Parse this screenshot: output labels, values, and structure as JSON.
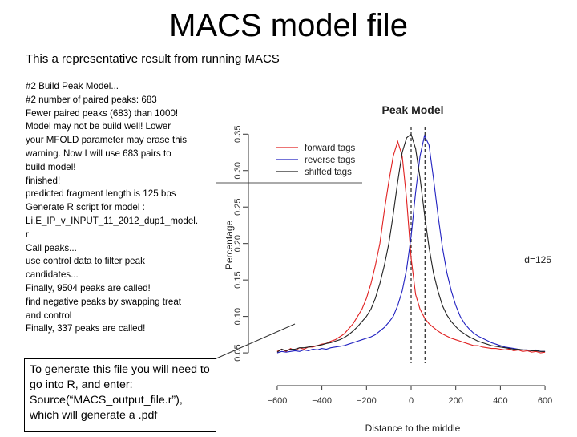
{
  "slide": {
    "title": "MACS model file",
    "subtitle": "This a representative result from running MACS",
    "log_lines": [
      "#2 Build Peak Model...",
      "#2 number of paired peaks: 683",
      "Fewer paired peaks (683) than 1000!",
      "Model may not be build well! Lower",
      "your MFOLD parameter may erase this",
      "warning. Now I will use 683 pairs to",
      "build model!",
      "finished!",
      "predicted fragment length is 125 bps",
      "Generate R script for model :",
      "Li.E_IP_v_INPUT_11_2012_dup1_model.",
      "r",
      "Call peaks...",
      "use control data to filter peak",
      "candidates...",
      "Finally, 9504 peaks are called!",
      "find negative peaks by swapping treat",
      "and control",
      "Finally, 337 peaks are called!"
    ],
    "note": "To generate this file you will need to go into R, and enter: Source(“MACS_output_file.r”), which will generate a .pdf"
  },
  "chart_data": {
    "type": "line",
    "title": "Peak Model",
    "xlabel": "Distance to the middle",
    "ylabel": "Percentage",
    "xlim": [
      -650,
      650
    ],
    "ylim": [
      0.038,
      0.358
    ],
    "xticks": [
      -600,
      -400,
      -200,
      0,
      200,
      400,
      600
    ],
    "yticks": [
      0.05,
      0.1,
      0.15,
      0.2,
      0.25,
      0.3,
      0.35
    ],
    "annotation": "d=125",
    "legend_position": "top-left",
    "vlines": [
      0,
      62
    ],
    "grid": false,
    "series": [
      {
        "name": "forward tags",
        "color": "#e02020",
        "x": [
          -600,
          -580,
          -560,
          -540,
          -520,
          -500,
          -480,
          -460,
          -440,
          -420,
          -400,
          -380,
          -360,
          -340,
          -320,
          -300,
          -280,
          -260,
          -240,
          -220,
          -200,
          -180,
          -160,
          -140,
          -120,
          -100,
          -80,
          -60,
          -40,
          -20,
          0,
          20,
          40,
          60,
          80,
          100,
          120,
          140,
          160,
          180,
          200,
          220,
          240,
          260,
          280,
          300,
          320,
          340,
          360,
          380,
          400,
          420,
          440,
          460,
          480,
          500,
          520,
          540,
          560,
          580,
          600
        ],
        "y": [
          0.052,
          0.055,
          0.052,
          0.056,
          0.053,
          0.057,
          0.055,
          0.058,
          0.058,
          0.06,
          0.062,
          0.063,
          0.066,
          0.068,
          0.072,
          0.076,
          0.083,
          0.09,
          0.1,
          0.11,
          0.125,
          0.145,
          0.17,
          0.2,
          0.245,
          0.285,
          0.32,
          0.34,
          0.32,
          0.26,
          0.18,
          0.13,
          0.11,
          0.098,
          0.09,
          0.085,
          0.08,
          0.076,
          0.073,
          0.07,
          0.068,
          0.066,
          0.064,
          0.062,
          0.06,
          0.06,
          0.058,
          0.057,
          0.056,
          0.056,
          0.055,
          0.054,
          0.055,
          0.053,
          0.054,
          0.052,
          0.053,
          0.051,
          0.052,
          0.05,
          0.051
        ]
      },
      {
        "name": "reverse tags",
        "color": "#2020c0",
        "x": [
          -600,
          -580,
          -560,
          -540,
          -520,
          -500,
          -480,
          -460,
          -440,
          -420,
          -400,
          -380,
          -360,
          -340,
          -320,
          -300,
          -280,
          -260,
          -240,
          -220,
          -200,
          -180,
          -160,
          -140,
          -120,
          -100,
          -80,
          -60,
          -40,
          -20,
          0,
          20,
          40,
          60,
          80,
          100,
          120,
          140,
          160,
          180,
          200,
          220,
          240,
          260,
          280,
          300,
          320,
          340,
          360,
          380,
          400,
          420,
          440,
          460,
          480,
          500,
          520,
          540,
          560,
          580,
          600
        ],
        "y": [
          0.05,
          0.052,
          0.051,
          0.052,
          0.053,
          0.052,
          0.054,
          0.053,
          0.055,
          0.054,
          0.056,
          0.055,
          0.057,
          0.058,
          0.059,
          0.06,
          0.062,
          0.064,
          0.066,
          0.068,
          0.07,
          0.072,
          0.075,
          0.08,
          0.085,
          0.092,
          0.1,
          0.115,
          0.135,
          0.165,
          0.21,
          0.27,
          0.32,
          0.348,
          0.335,
          0.29,
          0.24,
          0.195,
          0.16,
          0.135,
          0.115,
          0.1,
          0.09,
          0.083,
          0.077,
          0.073,
          0.07,
          0.067,
          0.064,
          0.062,
          0.06,
          0.058,
          0.057,
          0.056,
          0.055,
          0.054,
          0.054,
          0.053,
          0.054,
          0.052,
          0.052
        ]
      },
      {
        "name": "shifted tags",
        "color": "#222222",
        "x": [
          -600,
          -580,
          -560,
          -540,
          -520,
          -500,
          -480,
          -460,
          -440,
          -420,
          -400,
          -380,
          -360,
          -340,
          -320,
          -300,
          -280,
          -260,
          -240,
          -220,
          -200,
          -180,
          -160,
          -140,
          -120,
          -100,
          -80,
          -60,
          -40,
          -20,
          0,
          20,
          40,
          60,
          80,
          100,
          120,
          140,
          160,
          180,
          200,
          220,
          240,
          260,
          280,
          300,
          320,
          340,
          360,
          380,
          400,
          420,
          440,
          460,
          480,
          500,
          520,
          540,
          560,
          580,
          600
        ],
        "y": [
          0.051,
          0.055,
          0.053,
          0.055,
          0.055,
          0.057,
          0.057,
          0.058,
          0.059,
          0.06,
          0.061,
          0.063,
          0.064,
          0.066,
          0.068,
          0.071,
          0.075,
          0.08,
          0.086,
          0.093,
          0.1,
          0.11,
          0.125,
          0.145,
          0.17,
          0.2,
          0.24,
          0.285,
          0.325,
          0.345,
          0.35,
          0.33,
          0.29,
          0.24,
          0.195,
          0.16,
          0.135,
          0.115,
          0.102,
          0.093,
          0.086,
          0.08,
          0.076,
          0.072,
          0.069,
          0.066,
          0.064,
          0.062,
          0.06,
          0.059,
          0.058,
          0.057,
          0.056,
          0.055,
          0.055,
          0.054,
          0.054,
          0.053,
          0.053,
          0.052,
          0.052
        ]
      }
    ]
  }
}
